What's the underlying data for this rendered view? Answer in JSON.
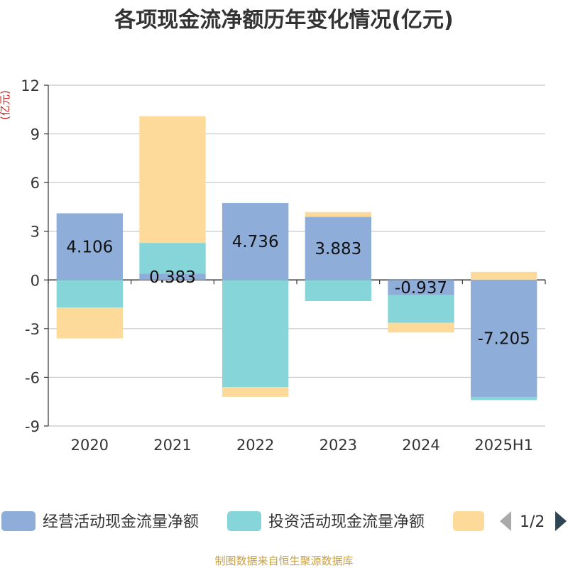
{
  "colors": {
    "operating": "#8eadd9",
    "investing": "#86d5d8",
    "financing": "#fdd99a",
    "grid": "#c8c8c8",
    "axis": "#333333",
    "footer": "#c8a046",
    "unit": "#cc2222",
    "pager_active": "#2f4554",
    "pager_inactive": "#aaaaaa"
  },
  "chart_data": {
    "type": "bar",
    "stacked": true,
    "title": "各项现金流净额历年变化情况(亿元)",
    "ylabel": "(亿元)",
    "categories": [
      "2020",
      "2021",
      "2022",
      "2023",
      "2024",
      "2025H1"
    ],
    "ylim": [
      -9,
      12
    ],
    "yticks": [
      12,
      9,
      6,
      3,
      0,
      -3,
      -6,
      -9
    ],
    "ytick_labels": [
      "12",
      "9",
      "6",
      "3",
      "0",
      "-3",
      "-6",
      "-9"
    ],
    "grid": true,
    "series": [
      {
        "name": "经营活动现金流量净额",
        "color_key": "operating",
        "values": [
          4.106,
          0.383,
          4.736,
          3.883,
          -0.937,
          -7.205
        ],
        "labels": [
          "4.106",
          "0.383",
          "4.736",
          "3.883",
          "-0.937",
          "-7.205"
        ]
      },
      {
        "name": "投资活动现金流量净额",
        "color_key": "investing",
        "values": [
          -1.7,
          1.9,
          -6.6,
          -1.3,
          -1.7,
          -0.2
        ]
      },
      {
        "name": "",
        "color_key": "financing",
        "values": [
          -1.9,
          7.8,
          -0.6,
          0.3,
          -0.6,
          0.5
        ]
      }
    ]
  },
  "legend": {
    "items": [
      "经营活动现金流量净额",
      "投资活动现金流量净额",
      ""
    ],
    "page": "1/2"
  },
  "footer": "制图数据来自恒生聚源数据库"
}
